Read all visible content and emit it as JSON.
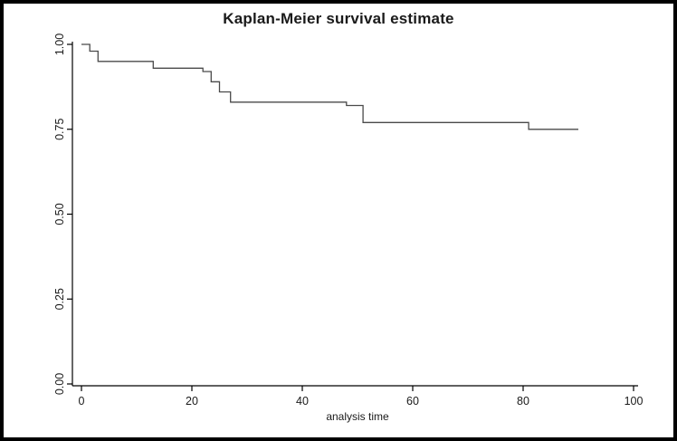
{
  "chart_data": {
    "type": "line",
    "subtype": "step",
    "title": "Kaplan-Meier survival estimate",
    "xlabel": "analysis time",
    "ylabel": "",
    "xlim": [
      0,
      100
    ],
    "ylim": [
      0,
      1
    ],
    "x_ticks": [
      {
        "value": 0,
        "label": "0"
      },
      {
        "value": 20,
        "label": "20"
      },
      {
        "value": 40,
        "label": "40"
      },
      {
        "value": 60,
        "label": "60"
      },
      {
        "value": 80,
        "label": "80"
      },
      {
        "value": 100,
        "label": "100"
      }
    ],
    "y_ticks": [
      {
        "value": 0.0,
        "label": "0.00"
      },
      {
        "value": 0.25,
        "label": "0.25"
      },
      {
        "value": 0.5,
        "label": "0.50"
      },
      {
        "value": 0.75,
        "label": "0.75"
      },
      {
        "value": 1.0,
        "label": "1.00"
      }
    ],
    "grid": false,
    "legend": "none",
    "line_color": "#4a4a4a",
    "axis_color": "#000000",
    "series": [
      {
        "name": "survival",
        "points": [
          [
            0,
            1.0
          ],
          [
            1.5,
            0.98
          ],
          [
            3,
            0.95
          ],
          [
            13,
            0.93
          ],
          [
            22,
            0.92
          ],
          [
            23.5,
            0.89
          ],
          [
            25,
            0.86
          ],
          [
            27,
            0.83
          ],
          [
            48,
            0.82
          ],
          [
            51,
            0.77
          ],
          [
            81,
            0.75
          ],
          [
            90,
            0.75
          ]
        ]
      }
    ]
  }
}
